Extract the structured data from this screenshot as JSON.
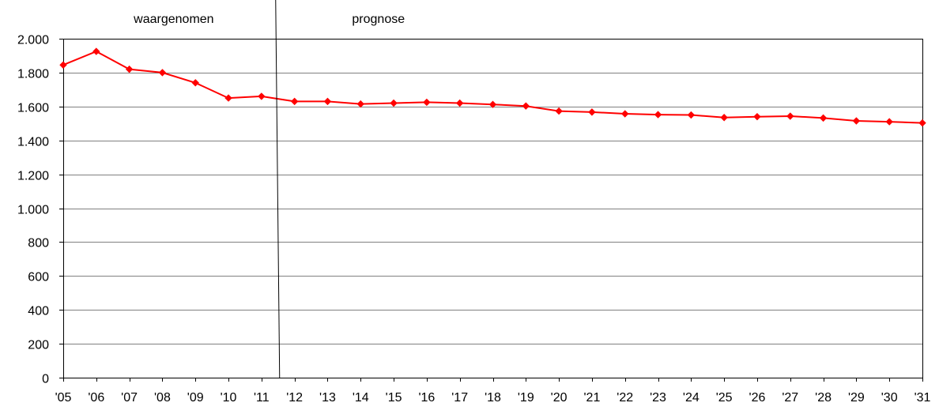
{
  "chart_data": {
    "type": "line",
    "title": "",
    "xlabel": "",
    "ylabel": "",
    "ylim": [
      0,
      2000
    ],
    "yticks": [
      0,
      200,
      400,
      600,
      800,
      1000,
      1200,
      1400,
      1600,
      1800,
      2000
    ],
    "ytick_labels": [
      "0",
      "200",
      "400",
      "600",
      "800",
      "1.000",
      "1.200",
      "1.400",
      "1.600",
      "1.800",
      "2.000"
    ],
    "categories": [
      "'05",
      "'06",
      "'07",
      "'08",
      "'09",
      "'10",
      "'11",
      "'12",
      "'13",
      "'14",
      "'15",
      "'16",
      "'17",
      "'18",
      "'19",
      "'20",
      "'21",
      "'22",
      "'23",
      "'24",
      "'25",
      "'26",
      "'27",
      "'28",
      "'29",
      "'30",
      "'31"
    ],
    "series": [
      {
        "color": "#ff0000",
        "marker": "diamond",
        "values": [
          1845,
          1925,
          1820,
          1800,
          1740,
          1650,
          1660,
          1630,
          1630,
          1615,
          1620,
          1625,
          1620,
          1612,
          1603,
          1573,
          1567,
          1557,
          1552,
          1550,
          1535,
          1540,
          1543,
          1532,
          1515,
          1510,
          1503
        ]
      }
    ],
    "grid": true,
    "legend": "none",
    "annotations": {
      "divider_after_category": "'11",
      "left_label": "waargenomen",
      "right_label": "prognose"
    }
  }
}
